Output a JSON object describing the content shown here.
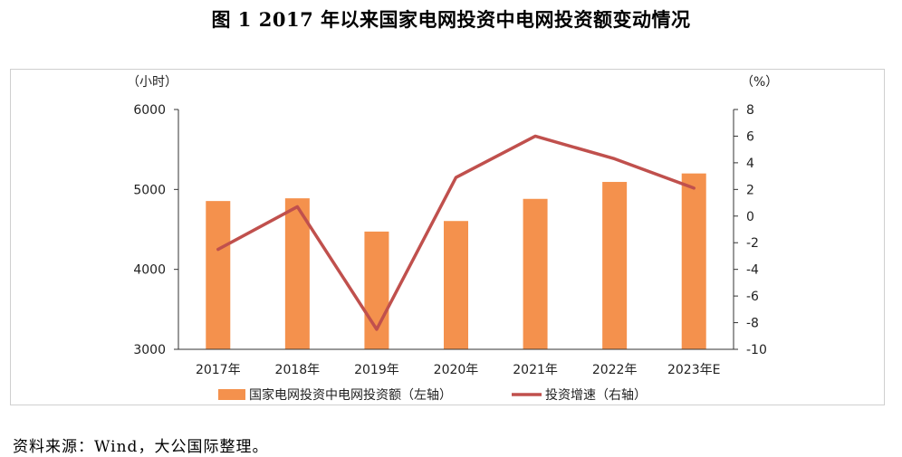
{
  "title": "图 1  2017 年以来国家电网投资中电网投资额变动情况",
  "source": "资料来源：Wind，大公国际整理。",
  "chart_data": {
    "type": "bar+line",
    "categories": [
      "2017年",
      "2018年",
      "2019年",
      "2020年",
      "2021年",
      "2022年",
      "2023年E"
    ],
    "series": [
      {
        "name": "国家电网投资中电网投资额（左轴）",
        "type": "bar",
        "axis": "left",
        "color": "#F4914D",
        "values": [
          4855,
          4889,
          4473,
          4605,
          4882,
          5094,
          5200
        ]
      },
      {
        "name": "投资增速（右轴）",
        "type": "line",
        "axis": "right",
        "color": "#C0504D",
        "values": [
          -2.5,
          0.7,
          -8.5,
          2.9,
          6.0,
          4.3,
          2.1
        ]
      }
    ],
    "left_axis": {
      "unit": "（小时）",
      "ylim": [
        3000,
        6000
      ],
      "ticks": [
        "3000",
        "4000",
        "5000",
        "6000"
      ],
      "tick_values": [
        3000,
        4000,
        5000,
        6000
      ]
    },
    "right_axis": {
      "unit": "（%）",
      "ylim": [
        -10,
        8
      ],
      "ticks": [
        "-10",
        "-8",
        "-6",
        "-4",
        "-2",
        "0",
        "2",
        "4",
        "6",
        "8"
      ],
      "tick_values": [
        -10,
        -8,
        -6,
        -4,
        -2,
        0,
        2,
        4,
        6,
        8
      ]
    },
    "grid": false,
    "legend_position": "bottom"
  }
}
